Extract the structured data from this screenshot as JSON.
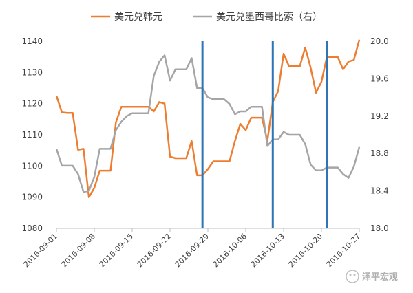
{
  "chart_data": {
    "type": "line",
    "legend_position": "top",
    "grid": false,
    "series": [
      {
        "name": "美元兑韩元",
        "axis": "left",
        "color": "#ED7D31",
        "values": [
          1122.5,
          1117.2,
          1117.0,
          1117.0,
          1105.2,
          1105.5,
          1090.0,
          1093.0,
          1098.5,
          1098.5,
          1098.5,
          1114.0,
          1119.0,
          1119.0,
          1119.0,
          1119.0,
          1119.0,
          1119.0,
          1117.5,
          1120.5,
          1120.0,
          1103.0,
          1102.5,
          1102.5,
          1102.5,
          1108.0,
          1097.0,
          1097.0,
          1099.0,
          1101.5,
          1101.5,
          1101.5,
          1101.5,
          1108.0,
          1113.5,
          1111.5,
          1115.5,
          1115.5,
          1115.5,
          1108.0,
          1120.5,
          1124.0,
          1136.0,
          1132.0,
          1132.0,
          1132.0,
          1138.0,
          1131.5,
          1123.5,
          1127.0,
          1135.0,
          1135.0,
          1135.0,
          1131.0,
          1133.5,
          1134.0,
          1140.5
        ]
      },
      {
        "name": "美元兑墨西哥比索（右）",
        "axis": "right",
        "color": "#A5A5A5",
        "values": [
          18.85,
          18.67,
          18.67,
          18.67,
          18.58,
          18.39,
          18.4,
          18.55,
          18.85,
          18.85,
          18.85,
          19.05,
          19.14,
          19.2,
          19.23,
          19.23,
          19.23,
          19.23,
          19.63,
          19.78,
          19.85,
          19.58,
          19.7,
          19.7,
          19.7,
          19.82,
          19.5,
          19.5,
          19.4,
          19.38,
          19.38,
          19.38,
          19.33,
          19.22,
          19.25,
          19.25,
          19.3,
          19.3,
          19.3,
          18.88,
          18.95,
          18.95,
          19.03,
          19.0,
          19.0,
          19.0,
          18.9,
          18.68,
          18.62,
          18.62,
          18.65,
          18.65,
          18.65,
          18.58,
          18.54,
          18.66,
          18.87
        ]
      }
    ],
    "x_tick_labels": [
      "2016-09-01",
      "2016-09-08",
      "2016-09-15",
      "2016-09-22",
      "2016-09-29",
      "2016-10-06",
      "2016-10-13",
      "2016-10-20",
      "2016-10-27"
    ],
    "left_axis": {
      "min": 1080,
      "max": 1140,
      "ticks": [
        "1080",
        "1090",
        "1100",
        "1110",
        "1120",
        "1130",
        "1140"
      ]
    },
    "right_axis": {
      "min": 18.0,
      "max": 20.0,
      "ticks": [
        "18.0",
        "18.4",
        "18.8",
        "19.2",
        "19.6",
        "20.0"
      ]
    },
    "marker_lines": {
      "color": "#2E75B6",
      "dates": [
        "2016-09-28",
        "2016-10-11",
        "2016-10-21"
      ]
    }
  },
  "watermark": {
    "text": "泽平宏观"
  }
}
